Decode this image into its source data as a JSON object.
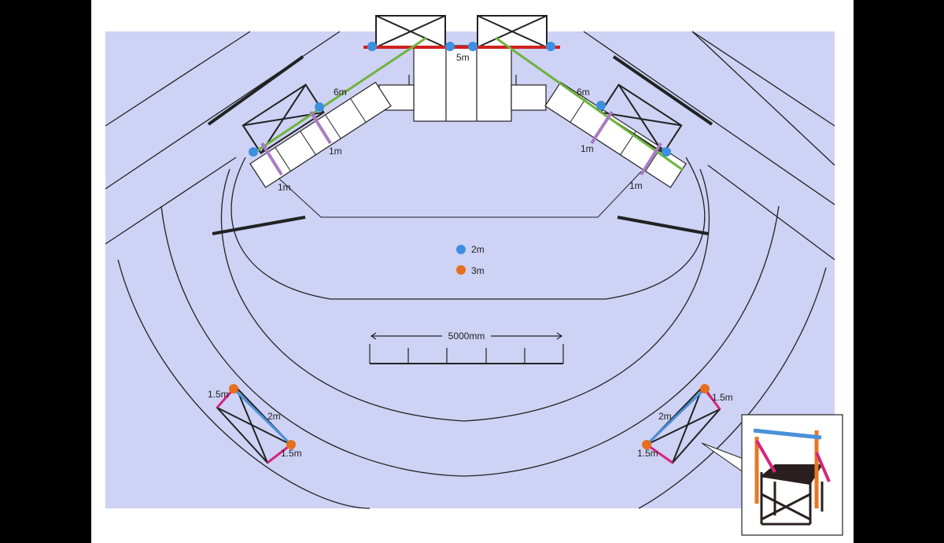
{
  "colors": {
    "background_outer": "#000000",
    "frame": "#ffffff",
    "floor": "#ced2f4",
    "line": "#222222",
    "pipe_red": "#d0201c",
    "pipe_green": "#6db33f",
    "pipe_purple": "#a97bc1",
    "pipe_blue": "#4a90d9",
    "pipe_pink": "#d6257a",
    "pipe_orange": "#e87722",
    "marker_blue": "#3d8fe0",
    "marker_orange": "#e56f1e"
  },
  "labels": {
    "top_span": "5m",
    "left_span": "6m",
    "right_span": "6m",
    "left_short_upper": "1m",
    "left_short_lower": "1m",
    "right_short_upper": "1m",
    "right_short_lower": "1m",
    "bl_top": "1.5m",
    "bl_diag": "2m",
    "bl_bottom": "1.5m",
    "br_top": "1.5m",
    "br_diag": "2m",
    "br_bottom": "1.5m"
  },
  "legend": {
    "items": [
      {
        "label": "2m",
        "color": "#3d8fe0"
      },
      {
        "label": "3m",
        "color": "#e56f1e"
      }
    ]
  },
  "scale_bar": {
    "label": "5000mm",
    "divisions": 5
  },
  "inset": {
    "icon": "director-chair-rig-icon"
  }
}
